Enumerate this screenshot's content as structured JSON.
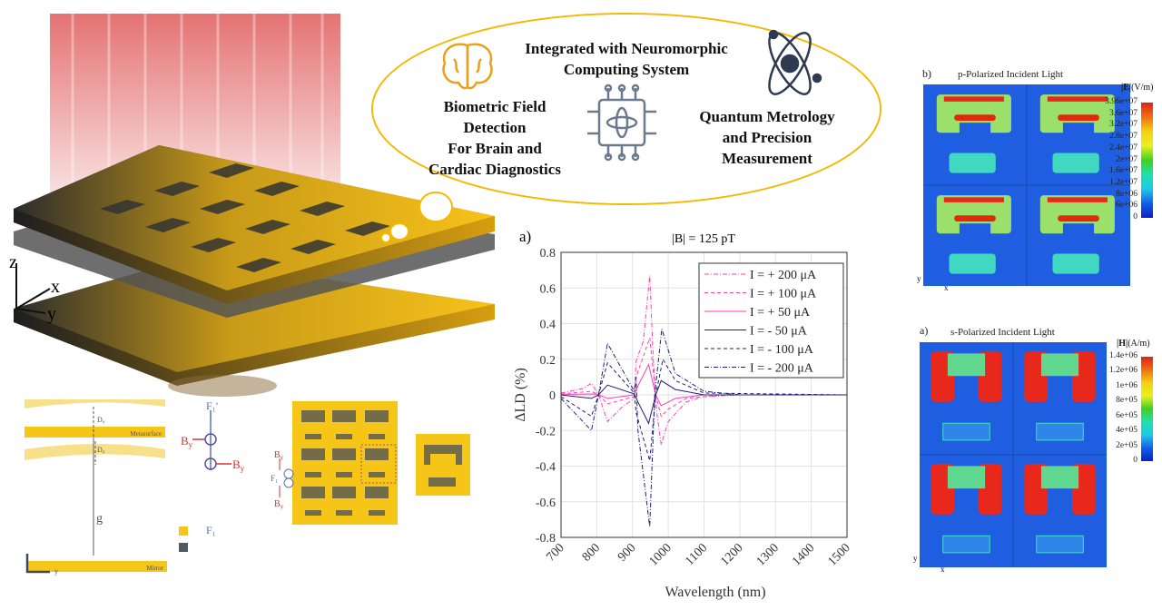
{
  "illustration": {
    "axes": {
      "z": "z",
      "x": "x",
      "y": "y"
    },
    "colors": {
      "gold": "#f5c518",
      "dark": "#3a3a3a",
      "light": "#e05a5a"
    }
  },
  "cloud": {
    "center_text": [
      "Integrated with Neuromorphic",
      "Computing System"
    ],
    "left_text": [
      "Biometric Field",
      "Detection",
      "For Brain and",
      "Cardiac Diagnostics"
    ],
    "right_text": [
      "Quantum Metrology",
      "and Precision",
      "Measurement"
    ],
    "icons": [
      "brain-icon",
      "chip-icon",
      "atom-icon"
    ],
    "stroke_color": "#f5b800"
  },
  "schematic": {
    "gap_labels": {
      "d1": "D₀",
      "d2": "D₀",
      "g": "g"
    },
    "layer_labels": {
      "metasurface": "Metasurface",
      "mirror": "Mirror"
    },
    "axis_label": "y",
    "force_labels": {
      "f_top": "F₁'",
      "f_bottom": "F₁",
      "by_left": "B",
      "by_right": "B",
      "by_sub": "y",
      "f_side": "F₁"
    },
    "top_view_labels": {
      "by_top": "B",
      "by_bottom": "B",
      "sub": "y",
      "f": "F₁"
    }
  },
  "chart_data": {
    "type": "line",
    "panel_label": "a)",
    "title": "|B| = 125 pT",
    "xlabel": "Wavelength (nm)",
    "ylabel": "ΔLD (%)",
    "xlim": [
      700,
      1500
    ],
    "ylim": [
      -0.8,
      0.8
    ],
    "xticks": [
      "700",
      "800",
      "900",
      "1000",
      "1100",
      "1200",
      "1300",
      "1400",
      "1500"
    ],
    "yticks": [
      "0.8",
      "0.6",
      "0.4",
      "0.2",
      "0",
      "-0.2",
      "-0.4",
      "-0.6",
      "-0.8"
    ],
    "grid": true,
    "legend_position": "top-right",
    "series": [
      {
        "name": "I = + 200 μA",
        "color": "#ff3fb0",
        "dash": "dashdot",
        "points": [
          [
            700,
            0.01
          ],
          [
            760,
            0.035
          ],
          [
            785,
            0.065
          ],
          [
            805,
            0.0
          ],
          [
            830,
            -0.15
          ],
          [
            870,
            -0.07
          ],
          [
            905,
            -0.02
          ],
          [
            910,
            0.19
          ],
          [
            930,
            0.3
          ],
          [
            948,
            0.67
          ],
          [
            958,
            0.2
          ],
          [
            968,
            -0.1
          ],
          [
            980,
            -0.28
          ],
          [
            1000,
            -0.15
          ],
          [
            1050,
            -0.04
          ],
          [
            1100,
            -0.01
          ],
          [
            1200,
            0
          ],
          [
            1500,
            0
          ]
        ]
      },
      {
        "name": "I = + 100 μA",
        "color": "#ff3fb0",
        "dash": "dashed",
        "points": [
          [
            700,
            0.005
          ],
          [
            785,
            0.02
          ],
          [
            805,
            0.0
          ],
          [
            830,
            -0.05
          ],
          [
            905,
            -0.01
          ],
          [
            910,
            0.1
          ],
          [
            948,
            0.32
          ],
          [
            965,
            0.0
          ],
          [
            980,
            -0.12
          ],
          [
            1000,
            -0.08
          ],
          [
            1050,
            -0.02
          ],
          [
            1150,
            0
          ],
          [
            1500,
            0
          ]
        ]
      },
      {
        "name": "I = + 50 μA",
        "color": "#ff3fb0",
        "dash": "solid",
        "points": [
          [
            700,
            0.003
          ],
          [
            800,
            0.005
          ],
          [
            830,
            -0.02
          ],
          [
            905,
            0.0
          ],
          [
            915,
            0.05
          ],
          [
            945,
            0.17
          ],
          [
            965,
            0.0
          ],
          [
            980,
            -0.06
          ],
          [
            1020,
            -0.02
          ],
          [
            1100,
            0
          ],
          [
            1500,
            0
          ]
        ]
      },
      {
        "name": "I = -  50 μA",
        "color": "#1f1f7a",
        "dash": "solid",
        "points": [
          [
            700,
            0.0
          ],
          [
            785,
            -0.02
          ],
          [
            805,
            0.0
          ],
          [
            830,
            0.055
          ],
          [
            905,
            0.005
          ],
          [
            915,
            -0.04
          ],
          [
            945,
            -0.16
          ],
          [
            965,
            0.0
          ],
          [
            980,
            0.08
          ],
          [
            1020,
            0.03
          ],
          [
            1100,
            0
          ],
          [
            1500,
            0
          ]
        ]
      },
      {
        "name": "I = -  100 μA",
        "color": "#1f1f7a",
        "dash": "dashed",
        "points": [
          [
            700,
            -0.01
          ],
          [
            785,
            -0.12
          ],
          [
            805,
            0.0
          ],
          [
            830,
            0.18
          ],
          [
            905,
            0.01
          ],
          [
            910,
            -0.1
          ],
          [
            948,
            -0.37
          ],
          [
            965,
            0.0
          ],
          [
            985,
            0.2
          ],
          [
            1020,
            0.08
          ],
          [
            1100,
            0.01
          ],
          [
            1500,
            0
          ]
        ]
      },
      {
        "name": "I = -  200 μA",
        "color": "#1f1f7a",
        "dash": "dashdot",
        "points": [
          [
            700,
            -0.02
          ],
          [
            785,
            -0.2
          ],
          [
            805,
            0.0
          ],
          [
            830,
            0.29
          ],
          [
            905,
            0.02
          ],
          [
            910,
            0.1
          ],
          [
            915,
            -0.2
          ],
          [
            948,
            -0.74
          ],
          [
            962,
            0.0
          ],
          [
            982,
            0.37
          ],
          [
            1020,
            0.12
          ],
          [
            1100,
            0.02
          ],
          [
            1200,
            0
          ],
          [
            1500,
            0
          ]
        ]
      }
    ]
  },
  "field_maps": {
    "p": {
      "panel_label": "b)",
      "title": "p-Polarized Incident Light",
      "quantity": "|E|",
      "unit": "(V/m)",
      "colorbar_ticks": [
        "3.96e+07",
        "3.6e+07",
        "3.2e+07",
        "2.8e+07",
        "2.4e+07",
        "2e+07",
        "1.6e+07",
        "1.2e+07",
        "8e+06",
        "6e+06",
        "0"
      ],
      "axis_x": "x",
      "axis_y": "y"
    },
    "s": {
      "panel_label": "a)",
      "title": "s-Polarized Incident Light",
      "quantity": "|H|",
      "unit": "(A/m)",
      "colorbar_ticks": [
        "1.4e+06",
        "1.2e+06",
        "1e+06",
        "8e+05",
        "6e+05",
        "4e+05",
        "2e+05",
        "0"
      ],
      "axis_x": "x",
      "axis_y": "y"
    }
  }
}
